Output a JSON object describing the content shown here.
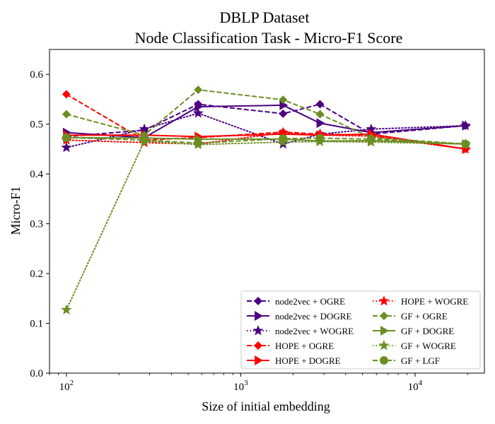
{
  "chart_data": {
    "type": "line",
    "title": "DBLP Dataset",
    "subtitle": "Node Classification Task - Micro-F1 Score",
    "xlabel": "Size of initial embedding",
    "ylabel": "Micro-F1",
    "xscale": "log",
    "xlim": [
      80,
      25000
    ],
    "ylim": [
      0,
      0.65
    ],
    "x_ticks": [
      {
        "value": 100,
        "base": "10",
        "exp": "2"
      },
      {
        "value": 1000,
        "base": "10",
        "exp": "3"
      },
      {
        "value": 10000,
        "base": "10",
        "exp": "4"
      }
    ],
    "y_ticks": [
      "0.0",
      "0.1",
      "0.2",
      "0.3",
      "0.4",
      "0.5",
      "0.6"
    ],
    "y_tick_values": [
      0,
      0.1,
      0.2,
      0.3,
      0.4,
      0.5,
      0.6
    ],
    "legend_position": "lower-right",
    "grid": false,
    "series": [
      {
        "name": "node2vec + OGRE",
        "color": "#4b0082",
        "dash": "dashed",
        "marker": "diamond",
        "x": [
          100,
          280,
          570,
          1750,
          2850,
          5600,
          19500
        ],
        "y": [
          0.475,
          0.488,
          0.54,
          0.521,
          0.54,
          0.48,
          0.497
        ]
      },
      {
        "name": "node2vec + DOGRE",
        "color": "#4b0082",
        "dash": "solid",
        "marker": "triangle-right",
        "x": [
          100,
          280,
          570,
          1750,
          2850,
          5600,
          19500
        ],
        "y": [
          0.483,
          0.473,
          0.535,
          0.538,
          0.502,
          0.483,
          0.497
        ]
      },
      {
        "name": "node2vec + WOGRE",
        "color": "#4b0082",
        "dash": "dotted",
        "marker": "star",
        "x": [
          100,
          280,
          570,
          1750,
          2850,
          5600,
          19500
        ],
        "y": [
          0.453,
          0.49,
          0.522,
          0.46,
          0.48,
          0.49,
          0.497
        ]
      },
      {
        "name": "HOPE + OGRE",
        "color": "#ff0000",
        "dash": "dashed",
        "marker": "diamond",
        "x": [
          100,
          280,
          570,
          1750,
          2850,
          5600,
          19500
        ],
        "y": [
          0.56,
          0.468,
          0.473,
          0.484,
          0.48,
          0.478,
          0.45
        ]
      },
      {
        "name": "HOPE + DOGRE",
        "color": "#ff0000",
        "dash": "solid",
        "marker": "triangle-right",
        "x": [
          100,
          280,
          570,
          1750,
          2850,
          5600,
          19500
        ],
        "y": [
          0.478,
          0.478,
          0.475,
          0.48,
          0.478,
          0.48,
          0.45
        ]
      },
      {
        "name": "HOPE + WOGRE",
        "color": "#ff0000",
        "dash": "dotted",
        "marker": "star",
        "x": [
          100,
          280,
          570,
          1750,
          2850,
          5600,
          19500
        ],
        "y": [
          0.468,
          0.463,
          0.46,
          0.483,
          0.478,
          0.476,
          0.45
        ]
      },
      {
        "name": "GF + OGRE",
        "color": "#6b8e23",
        "dash": "dashed",
        "marker": "diamond",
        "x": [
          100,
          280,
          570,
          1750,
          2850,
          5600,
          19500
        ],
        "y": [
          0.52,
          0.478,
          0.569,
          0.549,
          0.52,
          0.473,
          0.46
        ]
      },
      {
        "name": "GF + DOGRE",
        "color": "#6b8e23",
        "dash": "solid",
        "marker": "triangle-right",
        "x": [
          100,
          280,
          570,
          1750,
          2850,
          5600,
          19500
        ],
        "y": [
          0.473,
          0.472,
          0.47,
          0.47,
          0.466,
          0.467,
          0.46
        ]
      },
      {
        "name": "GF + WOGRE",
        "color": "#6b8e23",
        "dash": "dotted",
        "marker": "star",
        "x": [
          100,
          280,
          570,
          1750,
          2850,
          5600,
          19500
        ],
        "y": [
          0.127,
          0.466,
          0.459,
          0.464,
          0.465,
          0.464,
          0.46
        ]
      },
      {
        "name": "GF + LGF",
        "color": "#6b8e23",
        "dash": "dashed",
        "marker": "circle",
        "x": [
          100,
          280,
          570,
          1750,
          2850,
          5600,
          19500
        ],
        "y": [
          0.473,
          0.468,
          0.462,
          0.471,
          0.472,
          0.47,
          0.46
        ]
      }
    ]
  }
}
